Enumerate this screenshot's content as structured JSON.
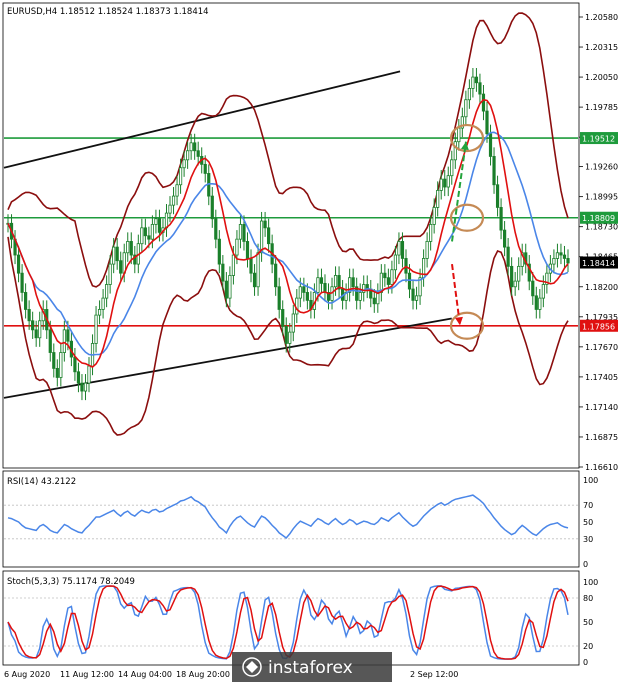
{
  "chart_data": {
    "type": "line",
    "main": {
      "header": "EURUSD,H4  1.18512 1.18524 1.18373 1.18414",
      "symbol": "EURUSD",
      "timeframe": "H4",
      "ohlc": {
        "open": 1.18512,
        "high": 1.18524,
        "low": 1.18373,
        "close": 1.18414
      },
      "ylim": [
        1.1661,
        1.2058
      ],
      "y_ticks": [
        "1.20580",
        "1.20315",
        "1.20050",
        "1.19785",
        "1.19520",
        "1.19260",
        "1.18995",
        "1.18730",
        "1.18465",
        "1.18200",
        "1.17935",
        "1.17670",
        "1.17405",
        "1.17140",
        "1.16875",
        "1.16610"
      ],
      "x_ticks": [
        "6 Aug 2020",
        "11 Aug 12:00",
        "14 Aug 04:00",
        "18 Aug 20:00",
        "2 Sep 12:00"
      ],
      "horizontal_levels": [
        {
          "label": "1.19512",
          "value": 1.19512,
          "color": "#1e9b3c"
        },
        {
          "label": "1.18809",
          "value": 1.18809,
          "color": "#1e9b3c"
        },
        {
          "label": "1.17856",
          "value": 1.17856,
          "color": "#e01010"
        }
      ],
      "current_price": {
        "label": "1.18414",
        "value": 1.18414
      },
      "channel": {
        "upper": [
          [
            0,
            1.1925
          ],
          [
            0.69,
            1.201
          ]
        ],
        "lower": [
          [
            0,
            1.1722
          ],
          [
            0.78,
            1.1792
          ]
        ]
      },
      "close_series": [
        1.1876,
        1.1862,
        1.1848,
        1.1832,
        1.1815,
        1.18,
        1.179,
        1.1782,
        1.1775,
        1.179,
        1.18,
        1.1782,
        1.1762,
        1.1748,
        1.174,
        1.1762,
        1.1782,
        1.1772,
        1.1758,
        1.1745,
        1.1735,
        1.1728,
        1.1735,
        1.175,
        1.177,
        1.1795,
        1.18,
        1.181,
        1.1822,
        1.184,
        1.1855,
        1.1843,
        1.1832,
        1.185,
        1.186,
        1.1848,
        1.184,
        1.1858,
        1.1872,
        1.1865,
        1.1862,
        1.1875,
        1.188,
        1.1868,
        1.1872,
        1.1885,
        1.1892,
        1.19,
        1.191,
        1.1925,
        1.1932,
        1.194,
        1.1947,
        1.194,
        1.1935,
        1.1928,
        1.192,
        1.19,
        1.188,
        1.1862,
        1.184,
        1.1825,
        1.181,
        1.183,
        1.1848,
        1.1862,
        1.1875,
        1.186,
        1.1845,
        1.1832,
        1.182,
        1.185,
        1.1878,
        1.1872,
        1.1858,
        1.184,
        1.182,
        1.18,
        1.1785,
        1.177,
        1.178,
        1.1796,
        1.181,
        1.182,
        1.1815,
        1.1808,
        1.18,
        1.1815,
        1.1828,
        1.1823,
        1.1815,
        1.1808,
        1.182,
        1.183,
        1.1818,
        1.1808,
        1.1815,
        1.1828,
        1.182,
        1.1808,
        1.1815,
        1.1822,
        1.1818,
        1.181,
        1.1805,
        1.1815,
        1.1832,
        1.1828,
        1.1822,
        1.1835,
        1.1848,
        1.186,
        1.1845,
        1.1832,
        1.1818,
        1.1808,
        1.1812,
        1.1828,
        1.1845,
        1.186,
        1.1875,
        1.189,
        1.1905,
        1.1915,
        1.1908,
        1.1918,
        1.1932,
        1.1948,
        1.196,
        1.197,
        1.1985,
        1.1995,
        1.2005,
        1.2,
        1.199,
        1.1975,
        1.1955,
        1.1935,
        1.191,
        1.189,
        1.187,
        1.1855,
        1.1838,
        1.182,
        1.1825,
        1.1838,
        1.185,
        1.184,
        1.1825,
        1.1812,
        1.18,
        1.181,
        1.1822,
        1.1832,
        1.184,
        1.1845,
        1.185,
        1.1848,
        1.1845,
        1.1841
      ],
      "indicators": [
        "Bollinger Bands",
        "Moving average (red)",
        "Moving average (blue)"
      ],
      "annotations": {
        "circles": [
          1.19512,
          1.18809,
          1.17856
        ],
        "arrows": [
          {
            "color": "#23a33c",
            "from": 1.186,
            "to": 1.1948
          },
          {
            "color": "#e01010",
            "from": 1.184,
            "to": 1.1786
          }
        ]
      }
    },
    "rsi": {
      "header": "RSI(14) 43.2122",
      "value": 43.2122,
      "ylim": [
        0,
        100
      ],
      "y_ticks": [
        "100",
        "70",
        "50",
        "30",
        "0"
      ],
      "series": [
        55,
        54,
        52,
        50,
        46,
        43,
        42,
        41,
        40,
        45,
        47,
        44,
        40,
        38,
        37,
        42,
        47,
        45,
        42,
        40,
        38,
        37,
        42,
        46,
        51,
        56,
        56,
        58,
        60,
        62,
        64,
        60,
        57,
        61,
        63,
        59,
        57,
        61,
        64,
        62,
        61,
        64,
        65,
        62,
        63,
        66,
        68,
        70,
        72,
        75,
        76,
        78,
        80,
        76,
        74,
        71,
        68,
        61,
        55,
        50,
        44,
        41,
        37,
        45,
        51,
        55,
        57,
        53,
        49,
        46,
        44,
        51,
        57,
        55,
        51,
        46,
        42,
        37,
        34,
        31,
        36,
        42,
        47,
        51,
        49,
        47,
        45,
        50,
        54,
        52,
        49,
        47,
        51,
        54,
        50,
        47,
        49,
        53,
        51,
        47,
        49,
        51,
        50,
        48,
        47,
        50,
        55,
        53,
        51,
        55,
        58,
        61,
        56,
        52,
        48,
        45,
        47,
        52,
        57,
        61,
        65,
        68,
        71,
        73,
        70,
        72,
        75,
        77,
        78,
        79,
        80,
        81,
        82,
        79,
        76,
        72,
        66,
        61,
        55,
        50,
        45,
        41,
        38,
        35,
        37,
        42,
        46,
        43,
        39,
        36,
        34,
        38,
        42,
        45,
        47,
        48,
        49,
        46,
        44,
        43
      ]
    },
    "stoch": {
      "header": "Stoch(5,3,3) 75.1174 78.2049",
      "main_value": 75.1174,
      "signal_value": 78.2049,
      "ylim": [
        0,
        100
      ],
      "y_ticks": [
        "100",
        "80",
        "50",
        "20",
        "0"
      ],
      "colors": {
        "main": "#4a86e8",
        "signal": "#e01010"
      }
    },
    "watermark": "instaforex",
    "colors": {
      "ma_red": "#e01010",
      "ma_blue": "#4a86e8",
      "bollinger": "#8b0e0e",
      "channel": "#111111"
    }
  }
}
